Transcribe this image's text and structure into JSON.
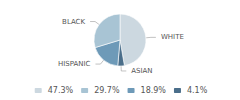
{
  "chart_data": {
    "type": "pie",
    "categories": [
      "WHITE",
      "ASIAN",
      "HISPANIC",
      "BLACK"
    ],
    "values": [
      47.3,
      4.1,
      18.9,
      29.7
    ],
    "value_labels": [
      "47.3%",
      "4.1%",
      "18.9%",
      "29.7%"
    ],
    "colors": [
      "#ccd8e0",
      "#4a6e8a",
      "#6e9ab8",
      "#a8c4d4"
    ],
    "legend_labels": [
      "47.3%",
      "29.7%",
      "18.9%",
      "4.1%"
    ],
    "legend": "bottom"
  }
}
